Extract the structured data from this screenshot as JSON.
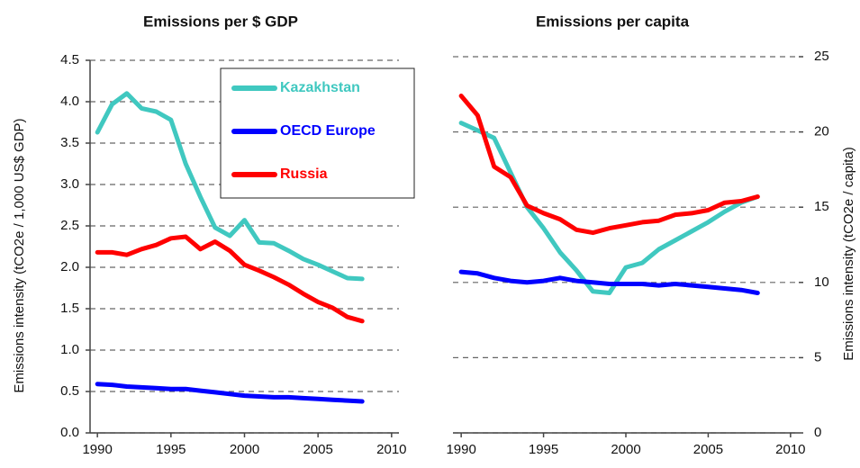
{
  "chart_data": [
    {
      "type": "line",
      "title": "Emissions per $ GDP",
      "ylabel": "Emissions intensity (tCO2e / 1,000 US$ GDP)",
      "x": [
        1990,
        1991,
        1992,
        1993,
        1994,
        1995,
        1996,
        1997,
        1998,
        1999,
        2000,
        2001,
        2002,
        2003,
        2004,
        2005,
        2006,
        2007,
        2008
      ],
      "series": [
        {
          "name": "Kazakhstan",
          "color": "#40c8c0",
          "values": [
            3.63,
            3.97,
            4.1,
            3.92,
            3.88,
            3.78,
            3.25,
            2.85,
            2.48,
            2.38,
            2.57,
            2.3,
            2.29,
            2.2,
            2.1,
            2.03,
            1.95,
            1.87,
            1.86
          ]
        },
        {
          "name": "OECD Europe",
          "color": "#0000ff",
          "values": [
            0.59,
            0.58,
            0.56,
            0.55,
            0.54,
            0.53,
            0.53,
            0.51,
            0.49,
            0.47,
            0.45,
            0.44,
            0.43,
            0.43,
            0.42,
            0.41,
            0.4,
            0.39,
            0.38
          ]
        },
        {
          "name": "Russia",
          "color": "#ff0000",
          "values": [
            2.18,
            2.18,
            2.15,
            2.22,
            2.27,
            2.35,
            2.37,
            2.22,
            2.31,
            2.2,
            2.03,
            1.96,
            1.88,
            1.79,
            1.68,
            1.58,
            1.51,
            1.4,
            1.35
          ]
        }
      ],
      "xlim": [
        1989.5,
        2010.5
      ],
      "xticks": [
        1990,
        1995,
        2000,
        2005,
        2010
      ],
      "ylim": [
        0,
        4.5
      ],
      "yticks": [
        {
          "value": 0,
          "label": "0.0"
        },
        0.5,
        {
          "value": 1,
          "label": "1.0"
        },
        1.5,
        {
          "value": 2,
          "label": "2.0"
        },
        2.5,
        {
          "value": 3,
          "label": "3.0"
        },
        3.5,
        {
          "value": 4,
          "label": "4.0"
        },
        4.5
      ],
      "grid": true,
      "legend": "upper right",
      "y_axis_position": "left"
    },
    {
      "type": "line",
      "title": "Emissions per capita",
      "ylabel": "Emissions intensity (tCO2e / capita)",
      "x": [
        1990,
        1991,
        1992,
        1993,
        1994,
        1995,
        1996,
        1997,
        1998,
        1999,
        2000,
        2001,
        2002,
        2003,
        2004,
        2005,
        2006,
        2007,
        2008
      ],
      "series": [
        {
          "color": "#40c8c0",
          "values": [
            20.6,
            20.1,
            19.6,
            17.3,
            15.0,
            13.6,
            12.0,
            10.8,
            9.4,
            9.3,
            11.0,
            11.3,
            12.2,
            12.8,
            13.4,
            14.0,
            14.7,
            15.3,
            15.7
          ]
        },
        {
          "color": "#0000ff",
          "values": [
            10.7,
            10.6,
            10.3,
            10.1,
            10.0,
            10.1,
            10.3,
            10.1,
            10.0,
            9.9,
            9.9,
            9.9,
            9.8,
            9.9,
            9.8,
            9.7,
            9.6,
            9.5,
            9.3
          ]
        },
        {
          "color": "#ff0000",
          "values": [
            22.4,
            21.1,
            17.7,
            17.0,
            15.1,
            14.6,
            14.2,
            13.5,
            13.3,
            13.6,
            13.8,
            14.0,
            14.1,
            14.5,
            14.6,
            14.8,
            15.3,
            15.4,
            15.7
          ]
        }
      ],
      "xlim": [
        1989.5,
        2010.5
      ],
      "xticks": [
        1990,
        1995,
        2000,
        2005,
        2010
      ],
      "ylim": [
        0,
        25
      ],
      "yticks": [
        0,
        5,
        10,
        15,
        20,
        25
      ],
      "grid": true,
      "y_axis_position": "right"
    }
  ]
}
